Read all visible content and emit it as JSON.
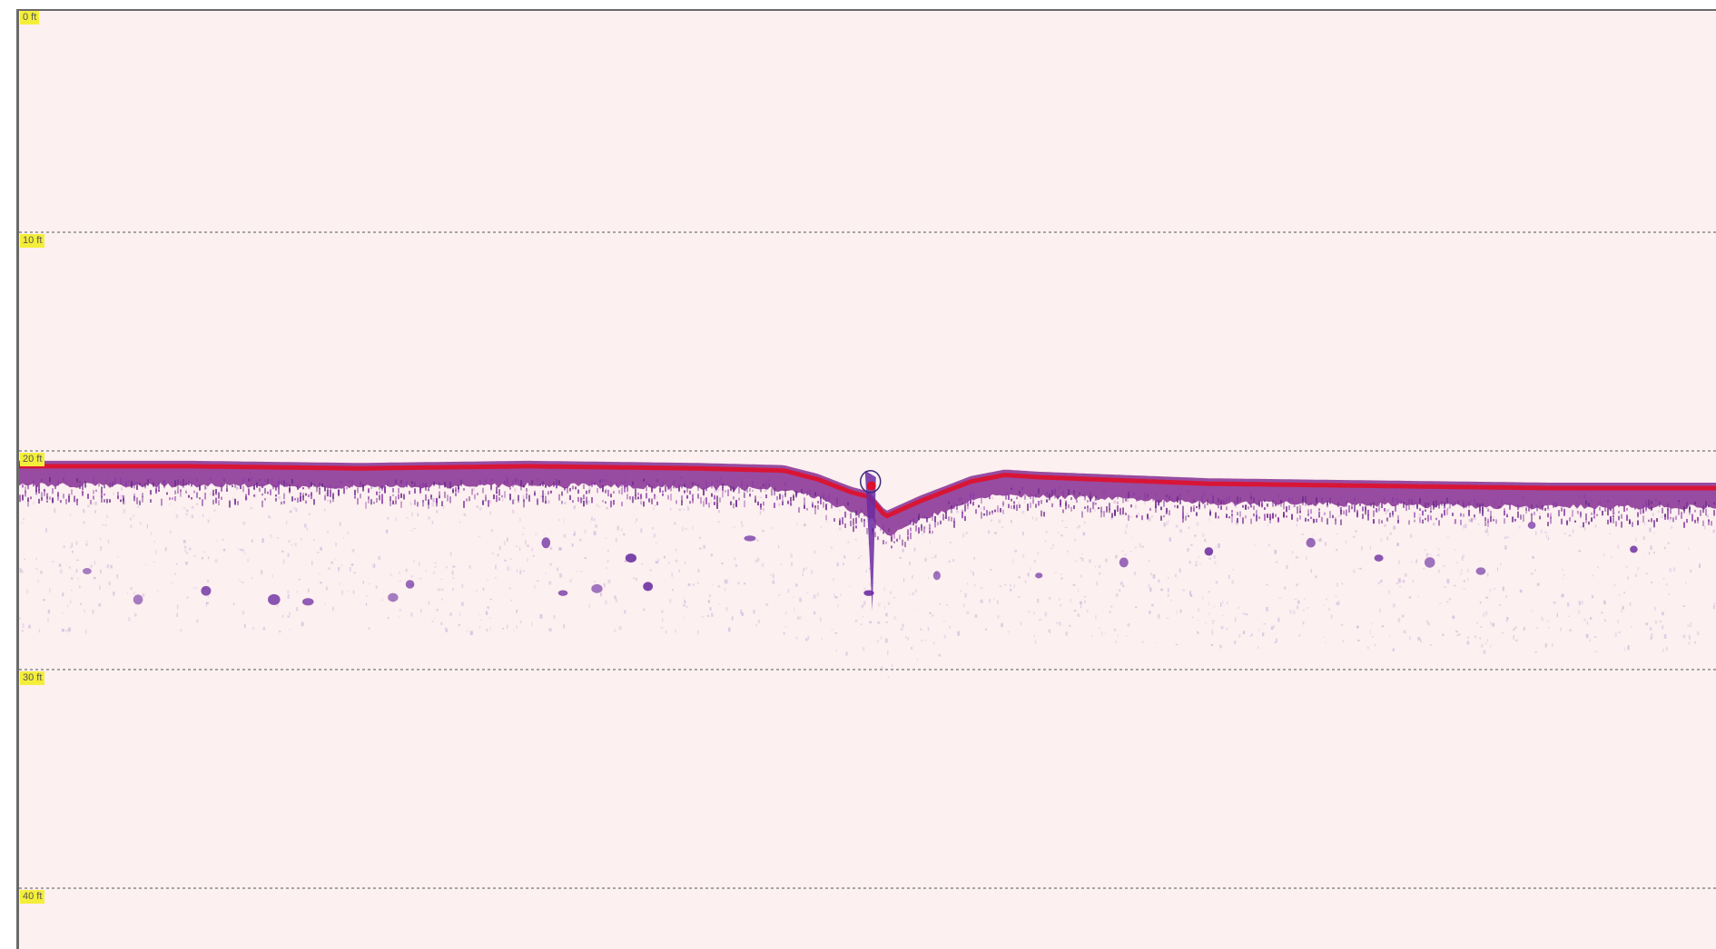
{
  "sonar": {
    "depth_unit": "ft",
    "depth_range_ft": [
      0,
      42
    ],
    "depth_labels": [
      "0 ft",
      "10 ft",
      "20 ft",
      "30 ft",
      "40 ft"
    ],
    "colors": {
      "background": "#fdf0f0",
      "bottom_line": "#e0102a",
      "bottom_return": "#7a1e8a",
      "fish_arch": "#6a2aa0",
      "label_bg": "#f4ee3a",
      "grid": "#8a8a8a"
    },
    "bottom_profile_depth_ft": [
      [
        0,
        20.7
      ],
      [
        0.1,
        20.7
      ],
      [
        0.2,
        20.8
      ],
      [
        0.3,
        20.7
      ],
      [
        0.4,
        20.8
      ],
      [
        0.45,
        20.9
      ],
      [
        0.47,
        21.3
      ],
      [
        0.49,
        21.9
      ],
      [
        0.5,
        22.1
      ],
      [
        0.51,
        23.0
      ],
      [
        0.53,
        22.3
      ],
      [
        0.56,
        21.4
      ],
      [
        0.58,
        21.1
      ],
      [
        0.6,
        21.2
      ],
      [
        0.7,
        21.5
      ],
      [
        0.8,
        21.6
      ],
      [
        0.9,
        21.7
      ],
      [
        1.0,
        21.7
      ]
    ],
    "fish_targets_depth_ft": [
      [
        0.04,
        25.5
      ],
      [
        0.07,
        26.8
      ],
      [
        0.11,
        26.4
      ],
      [
        0.15,
        26.8
      ],
      [
        0.17,
        26.9
      ],
      [
        0.22,
        26.7
      ],
      [
        0.23,
        26.1
      ],
      [
        0.31,
        24.2
      ],
      [
        0.32,
        26.5
      ],
      [
        0.34,
        26.3
      ],
      [
        0.36,
        24.9
      ],
      [
        0.37,
        26.2
      ],
      [
        0.43,
        24.0
      ],
      [
        0.5,
        26.5
      ],
      [
        0.54,
        25.7
      ],
      [
        0.6,
        25.7
      ],
      [
        0.65,
        25.1
      ],
      [
        0.7,
        24.6
      ],
      [
        0.76,
        24.2
      ],
      [
        0.8,
        24.9
      ],
      [
        0.83,
        25.1
      ],
      [
        0.86,
        25.5
      ],
      [
        0.89,
        23.4
      ],
      [
        0.95,
        24.5
      ]
    ]
  }
}
